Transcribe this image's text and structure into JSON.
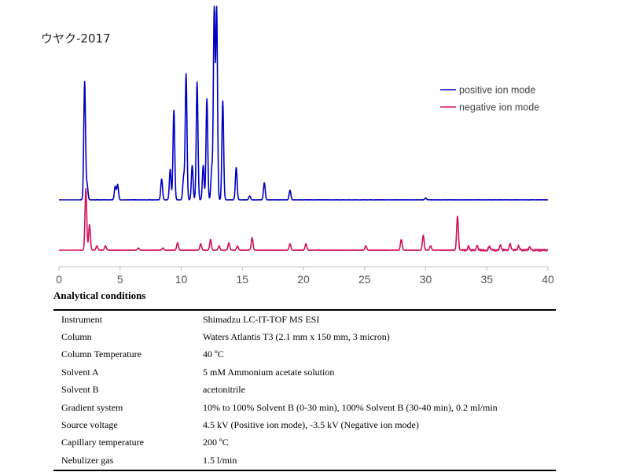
{
  "sample_title": "ウヤク-2017",
  "chart_data": {
    "type": "line",
    "title": "",
    "xlabel": "",
    "ylabel": "",
    "xlim": [
      0,
      40
    ],
    "x_ticks": [
      0,
      5,
      10,
      15,
      20,
      25,
      30,
      35,
      40
    ],
    "grid": false,
    "legend_position": "top-right",
    "series": [
      {
        "name": "positive ion mode",
        "color": "#0000c0",
        "baseline_note": "upper trace",
        "peaks": [
          {
            "x": 2.1,
            "y": 0.62
          },
          {
            "x": 2.3,
            "y": 0.08
          },
          {
            "x": 4.6,
            "y": 0.07
          },
          {
            "x": 4.8,
            "y": 0.08
          },
          {
            "x": 8.4,
            "y": 0.11
          },
          {
            "x": 9.1,
            "y": 0.16
          },
          {
            "x": 9.4,
            "y": 0.47
          },
          {
            "x": 10.2,
            "y": 0.12
          },
          {
            "x": 10.4,
            "y": 0.66
          },
          {
            "x": 10.9,
            "y": 0.18
          },
          {
            "x": 11.3,
            "y": 0.62
          },
          {
            "x": 11.8,
            "y": 0.18
          },
          {
            "x": 12.1,
            "y": 0.53
          },
          {
            "x": 12.5,
            "y": 0.16
          },
          {
            "x": 12.7,
            "y": 1.0
          },
          {
            "x": 12.9,
            "y": 1.0
          },
          {
            "x": 13.4,
            "y": 0.52
          },
          {
            "x": 14.5,
            "y": 0.17
          },
          {
            "x": 15.6,
            "y": 0.02
          },
          {
            "x": 16.8,
            "y": 0.09
          },
          {
            "x": 18.9,
            "y": 0.05
          },
          {
            "x": 30.0,
            "y": 0.01
          }
        ]
      },
      {
        "name": "negative ion mode",
        "color": "#d0105a",
        "baseline_note": "lower trace",
        "peaks": [
          {
            "x": 2.2,
            "y": 0.29
          },
          {
            "x": 2.5,
            "y": 0.12
          },
          {
            "x": 3.1,
            "y": 0.02
          },
          {
            "x": 3.8,
            "y": 0.02
          },
          {
            "x": 6.5,
            "y": 0.01
          },
          {
            "x": 8.5,
            "y": 0.01
          },
          {
            "x": 9.7,
            "y": 0.035
          },
          {
            "x": 11.6,
            "y": 0.03
          },
          {
            "x": 12.4,
            "y": 0.05
          },
          {
            "x": 13.1,
            "y": 0.02
          },
          {
            "x": 13.9,
            "y": 0.035
          },
          {
            "x": 14.6,
            "y": 0.02
          },
          {
            "x": 15.8,
            "y": 0.06
          },
          {
            "x": 18.9,
            "y": 0.03
          },
          {
            "x": 20.2,
            "y": 0.03
          },
          {
            "x": 25.1,
            "y": 0.02
          },
          {
            "x": 28.0,
            "y": 0.05
          },
          {
            "x": 29.8,
            "y": 0.07
          },
          {
            "x": 30.4,
            "y": 0.02
          },
          {
            "x": 32.6,
            "y": 0.16
          },
          {
            "x": 33.5,
            "y": 0.02
          },
          {
            "x": 34.2,
            "y": 0.02
          },
          {
            "x": 35.2,
            "y": 0.02
          },
          {
            "x": 36.1,
            "y": 0.025
          },
          {
            "x": 36.9,
            "y": 0.03
          },
          {
            "x": 37.6,
            "y": 0.02
          },
          {
            "x": 38.5,
            "y": 0.015
          }
        ]
      }
    ]
  },
  "conditions": {
    "heading": "Analytical conditions",
    "rows": [
      {
        "parameter": "Instrument",
        "value": "Shimadzu LC-IT-TOF MS ESI"
      },
      {
        "parameter": "Column",
        "value": "Waters Atlantis T3 (2.1 mm x 150 mm, 3 micron)"
      },
      {
        "parameter": "Column Temperature",
        "value": "40 ºC"
      },
      {
        "parameter": "Solvent A",
        "value": "5 mM Ammonium acetate solution"
      },
      {
        "parameter": "Solvent B",
        "value": "acetonitrile"
      },
      {
        "parameter": "Gradient system",
        "value": "10% to 100% Solvent B (0-30 min), 100% Solvent B (30-40 min), 0.2 ml/min"
      },
      {
        "parameter": "Source voltage",
        "value": "4.5 kV (Positive ion mode), -3.5 kV (Negative ion mode)"
      },
      {
        "parameter": "Capillary temperature",
        "value": "200 ºC"
      },
      {
        "parameter": "Nebulizer gas",
        "value": "1.5 l/min"
      }
    ]
  }
}
